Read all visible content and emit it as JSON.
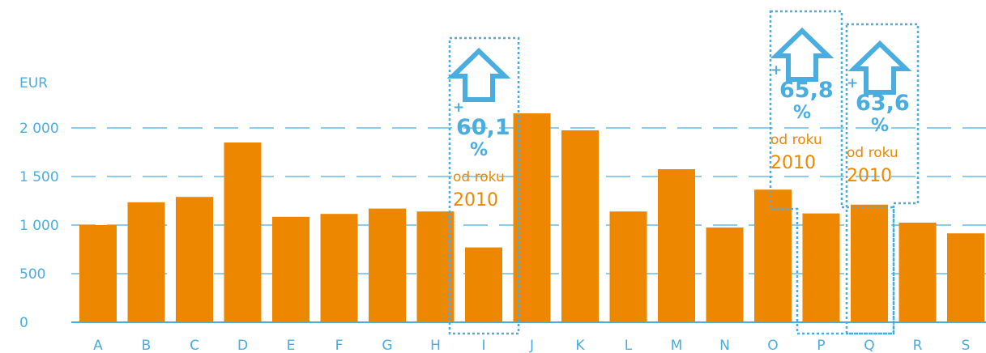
{
  "chart_data": {
    "type": "bar",
    "ylabel": "EUR",
    "categories": [
      "A",
      "B",
      "C",
      "D",
      "E",
      "F",
      "G",
      "H",
      "I",
      "J",
      "K",
      "L",
      "M",
      "N",
      "O",
      "P",
      "Q",
      "R",
      "S"
    ],
    "values": [
      1000,
      1235,
      1290,
      1850,
      1085,
      1115,
      1170,
      1140,
      770,
      2150,
      1975,
      1140,
      1575,
      975,
      1365,
      1120,
      1210,
      1025,
      915
    ],
    "ylim": [
      0,
      2000
    ],
    "yticks": [
      0,
      500,
      1000,
      1500,
      2000
    ],
    "ytick_labels": [
      "0",
      "500",
      "1 000",
      "1 500",
      "2 000"
    ],
    "grid": true,
    "annotations": [
      {
        "category": "I",
        "plus": "+",
        "value": "60,1",
        "percent": "%",
        "text": "od roku",
        "year": "2010"
      },
      {
        "category": "P",
        "plus": "+",
        "value": "65,8",
        "percent": "%",
        "text": "od roku",
        "year": "2010"
      },
      {
        "category": "Q",
        "plus": "+",
        "value": "63,6",
        "percent": "%",
        "text": "od roku",
        "year": "2010"
      }
    ]
  },
  "colors": {
    "bar": "#EE8700",
    "axis": "#4AADE0",
    "grid": "#4AADE0",
    "annotation": "#4AADE0",
    "annotation_text": "#EE8700"
  }
}
